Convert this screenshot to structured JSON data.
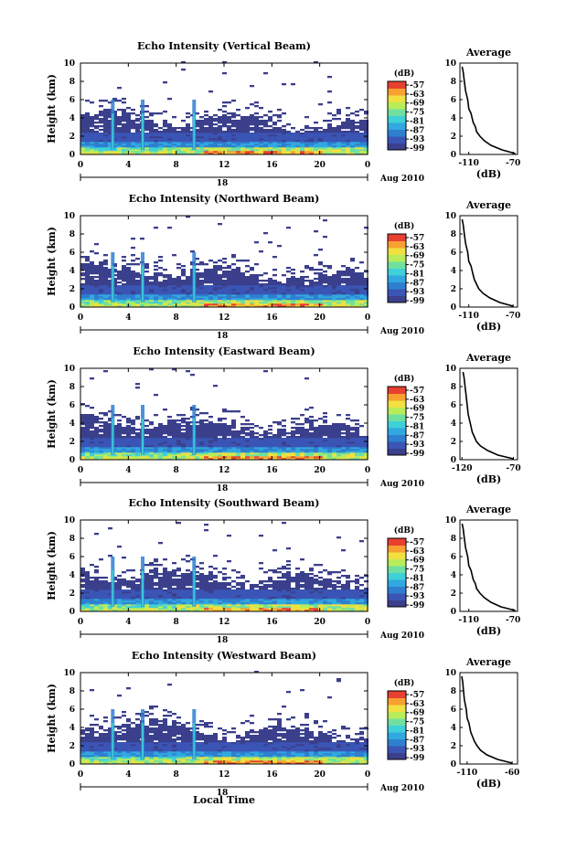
{
  "figure": {
    "xlabel": "Local Time",
    "day_label": "18",
    "month_label": "Aug 2010",
    "ylabel": "Height (km)",
    "colorbar_unit": "(dB)",
    "avg_title": "Average",
    "avg_xlabel": "(dB)"
  },
  "chart_data": [
    {
      "type": "heatmap",
      "title": "Echo Intensity (Vertical Beam)",
      "xlabel": "Local Time",
      "ylabel": "Height (km)",
      "xlim": [
        0,
        24
      ],
      "ylim": [
        0,
        10
      ],
      "x_ticks": [
        "0",
        "4",
        "8",
        "12",
        "16",
        "20",
        "0"
      ],
      "y_ticks": [
        "0",
        "2",
        "4",
        "6",
        "8",
        "10"
      ],
      "colorbar": {
        "label": "(dB)",
        "ticks": [
          "-57",
          "-63",
          "-69",
          "-75",
          "-81",
          "-87",
          "-93",
          "-99"
        ],
        "range": [
          -99,
          -57
        ]
      },
      "average_profile": {
        "title": "Average",
        "xlabel": "(dB)",
        "xlim": [
          -118,
          -66
        ],
        "x_ticks": [
          "-110",
          "-70"
        ],
        "height": [
          0.1,
          0.5,
          1.0,
          1.5,
          2.0,
          2.5,
          3.0,
          3.5,
          4.0,
          4.5,
          5.0,
          6.0,
          7.0,
          8.0,
          9.0,
          9.6
        ],
        "value": [
          -68,
          -80,
          -90,
          -96,
          -100,
          -103,
          -104,
          -106,
          -107,
          -108,
          -110,
          -111,
          -113,
          -114,
          -115,
          -116
        ]
      },
      "spikes_hours": [
        2.7,
        5.2,
        9.5
      ]
    },
    {
      "type": "heatmap",
      "title": "Echo Intensity (Northward Beam)",
      "xlabel": "Local Time",
      "ylabel": "Height (km)",
      "xlim": [
        0,
        24
      ],
      "ylim": [
        0,
        10
      ],
      "x_ticks": [
        "0",
        "4",
        "8",
        "12",
        "16",
        "20",
        "0"
      ],
      "y_ticks": [
        "0",
        "2",
        "4",
        "6",
        "8",
        "10"
      ],
      "colorbar": {
        "label": "(dB)",
        "ticks": [
          "-57",
          "-63",
          "-69",
          "-75",
          "-81",
          "-87",
          "-93",
          "-99"
        ],
        "range": [
          -99,
          -57
        ]
      },
      "average_profile": {
        "title": "Average",
        "xlabel": "(dB)",
        "xlim": [
          -118,
          -66
        ],
        "x_ticks": [
          "-110",
          "-70"
        ],
        "height": [
          0.1,
          0.5,
          1.0,
          1.5,
          2.0,
          2.5,
          3.0,
          3.5,
          4.0,
          4.5,
          5.0,
          6.0,
          7.0,
          8.0,
          9.0,
          9.6
        ],
        "value": [
          -70,
          -82,
          -91,
          -97,
          -101,
          -103,
          -105,
          -106,
          -107,
          -108,
          -110,
          -111,
          -113,
          -114,
          -115,
          -116
        ]
      },
      "spikes_hours": [
        2.7,
        5.2,
        9.5
      ]
    },
    {
      "type": "heatmap",
      "title": "Echo Intensity (Eastward Beam)",
      "xlabel": "Local Time",
      "ylabel": "Height (km)",
      "xlim": [
        0,
        24
      ],
      "ylim": [
        0,
        10
      ],
      "x_ticks": [
        "0",
        "4",
        "8",
        "12",
        "16",
        "20",
        "0"
      ],
      "y_ticks": [
        "0",
        "2",
        "4",
        "6",
        "8",
        "10"
      ],
      "colorbar": {
        "label": "(dB)",
        "ticks": [
          "-57",
          "-63",
          "-69",
          "-75",
          "-81",
          "-87",
          "-93",
          "-99"
        ],
        "range": [
          -99,
          -57
        ]
      },
      "average_profile": {
        "title": "Average",
        "xlabel": "(dB)",
        "xlim": [
          -122,
          -66
        ],
        "x_ticks": [
          "-120",
          "-70"
        ],
        "height": [
          0.1,
          0.5,
          1.0,
          1.5,
          2.0,
          2.5,
          3.0,
          3.5,
          4.0,
          4.5,
          5.0,
          6.0,
          7.0,
          8.0,
          9.0,
          9.6
        ],
        "value": [
          -70,
          -85,
          -95,
          -102,
          -106,
          -108,
          -110,
          -111,
          -112,
          -113,
          -114,
          -115,
          -116,
          -117,
          -118,
          -119
        ]
      },
      "spikes_hours": [
        2.7,
        5.2,
        9.5
      ]
    },
    {
      "type": "heatmap",
      "title": "Echo Intensity (Southward Beam)",
      "xlabel": "Local Time",
      "ylabel": "Height (km)",
      "xlim": [
        0,
        24
      ],
      "ylim": [
        0,
        10
      ],
      "x_ticks": [
        "0",
        "4",
        "8",
        "12",
        "16",
        "20",
        "0"
      ],
      "y_ticks": [
        "0",
        "2",
        "4",
        "6",
        "8",
        "10"
      ],
      "colorbar": {
        "label": "(dB)",
        "ticks": [
          "-57",
          "-63",
          "-69",
          "-75",
          "-81",
          "-87",
          "-93",
          "-99"
        ],
        "range": [
          -99,
          -57
        ]
      },
      "average_profile": {
        "title": "Average",
        "xlabel": "(dB)",
        "xlim": [
          -118,
          -66
        ],
        "x_ticks": [
          "-110",
          "-70"
        ],
        "height": [
          0.1,
          0.5,
          1.0,
          1.5,
          2.0,
          2.5,
          3.0,
          3.5,
          4.0,
          4.5,
          5.0,
          6.0,
          7.0,
          8.0,
          9.0,
          9.6
        ],
        "value": [
          -68,
          -81,
          -90,
          -96,
          -100,
          -103,
          -104,
          -106,
          -107,
          -108,
          -110,
          -111,
          -113,
          -114,
          -115,
          -116
        ]
      },
      "spikes_hours": [
        2.7,
        5.2,
        9.5
      ]
    },
    {
      "type": "heatmap",
      "title": "Echo Intensity (Westward Beam)",
      "xlabel": "Local Time",
      "ylabel": "Height (km)",
      "xlim": [
        0,
        24
      ],
      "ylim": [
        0,
        10
      ],
      "x_ticks": [
        "0",
        "4",
        "8",
        "12",
        "16",
        "20",
        "0"
      ],
      "y_ticks": [
        "0",
        "2",
        "4",
        "6",
        "8",
        "10"
      ],
      "colorbar": {
        "label": "(dB)",
        "ticks": [
          "-57",
          "-63",
          "-69",
          "-75",
          "-81",
          "-87",
          "-93",
          "-99"
        ],
        "range": [
          -99,
          -57
        ]
      },
      "average_profile": {
        "title": "Average",
        "xlabel": "(dB)",
        "xlim": [
          -118,
          -54
        ],
        "x_ticks": [
          "-110",
          "-60"
        ],
        "height": [
          0.1,
          0.5,
          1.0,
          1.5,
          2.0,
          2.5,
          3.0,
          3.5,
          4.0,
          4.5,
          5.0,
          6.0,
          7.0,
          8.0,
          9.0,
          9.6
        ],
        "value": [
          -60,
          -76,
          -88,
          -95,
          -99,
          -102,
          -104,
          -106,
          -107,
          -108,
          -110,
          -111,
          -113,
          -114,
          -115,
          -116
        ]
      },
      "spikes_hours": [
        2.7,
        5.2,
        9.5
      ]
    }
  ],
  "colors": {
    "scale": [
      "#3b3f8c",
      "#3a55b5",
      "#2f7fd0",
      "#31a8e0",
      "#3fd0d8",
      "#6fe0a0",
      "#b8ec5a",
      "#f0e040",
      "#f8a030",
      "#e84030"
    ]
  }
}
